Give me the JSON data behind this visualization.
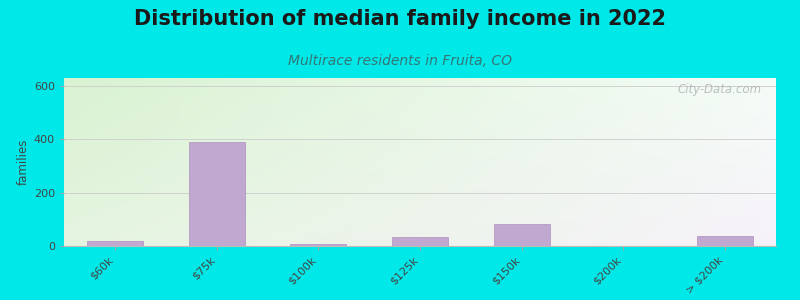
{
  "title": "Distribution of median family income in 2022",
  "subtitle": "Multirace residents in Fruita, CO",
  "categories": [
    "$60k",
    "$75k",
    "$100k",
    "$125k",
    "$150k",
    "$200k",
    "> $200k"
  ],
  "values": [
    18,
    390,
    8,
    35,
    82,
    0,
    38
  ],
  "bar_color": "#c0a8d0",
  "bar_edge_color": "#b090c0",
  "ylabel": "families",
  "ylim": [
    0,
    630
  ],
  "yticks": [
    0,
    200,
    400,
    600
  ],
  "outer_bg": "#00e8e8",
  "title_fontsize": 15,
  "title_color": "#1a1a1a",
  "subtitle_fontsize": 10,
  "subtitle_color": "#337777",
  "watermark": "City-Data.com",
  "grid_color": "#cccccc",
  "tick_color": "#444444"
}
